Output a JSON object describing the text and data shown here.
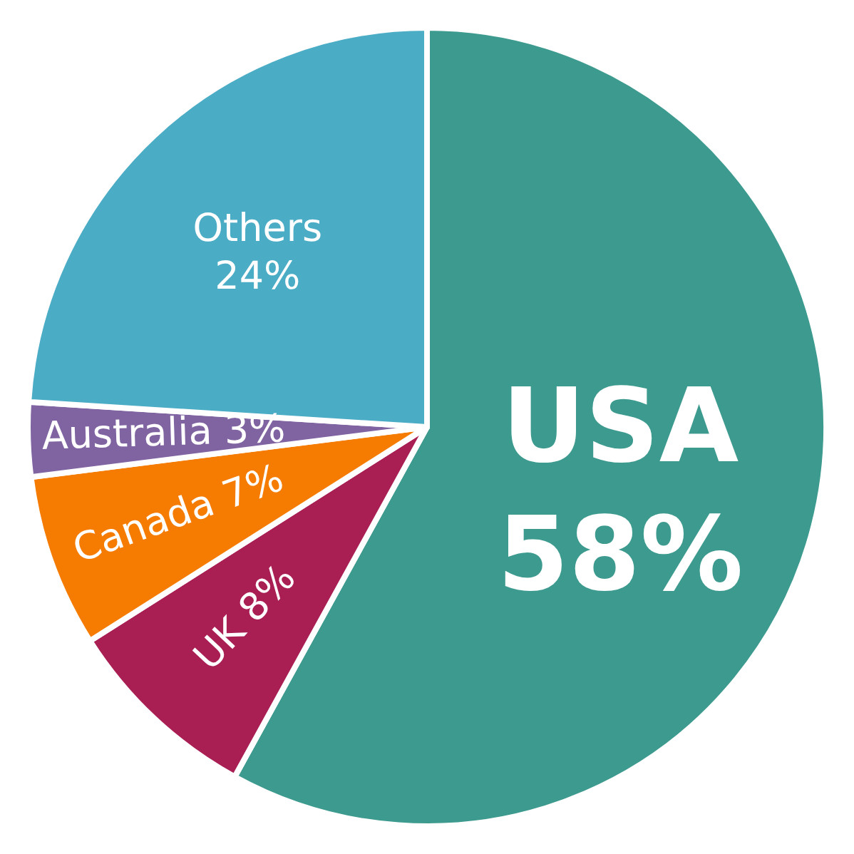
{
  "chart_data": {
    "type": "pie",
    "categories": [
      "USA",
      "UK",
      "Canada",
      "Australia",
      "Others"
    ],
    "values": [
      58,
      8,
      7,
      3,
      24
    ],
    "colors": [
      "#3d9a8f",
      "#a91f54",
      "#f57c00",
      "#8064a2",
      "#4bacc6"
    ],
    "value_labels": [
      "58%",
      "8%",
      "7%",
      "3%",
      "24%"
    ]
  }
}
